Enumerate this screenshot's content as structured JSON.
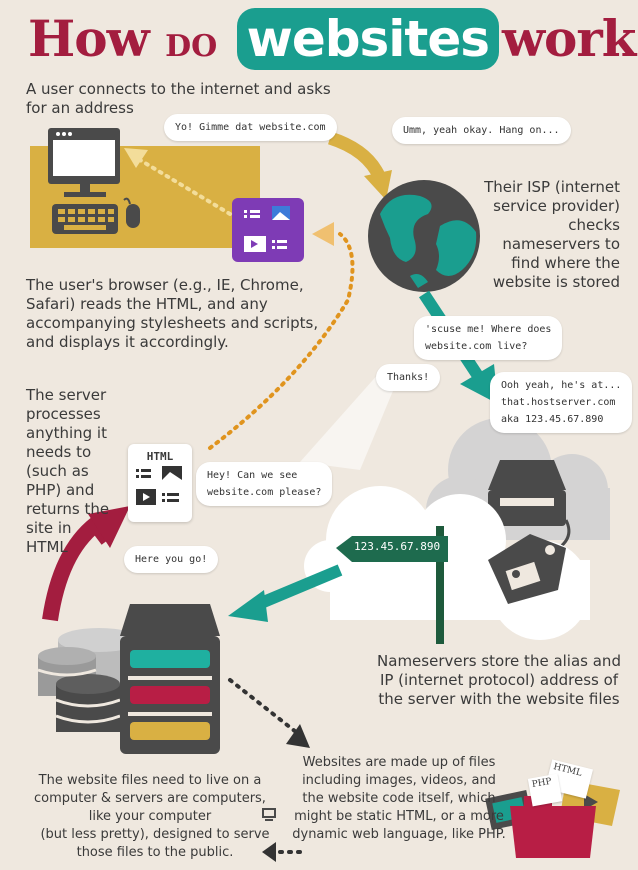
{
  "title": {
    "part1": "How",
    "part2": "DO",
    "highlight": "websites",
    "part3": "work?"
  },
  "texts": {
    "user_connects": "A user connects to the internet and asks for an address",
    "isp": "Their ISP (internet service provider) checks nameservers to find where the website is stored",
    "browser": "The user's browser (e.g., IE, Chrome, Safari) reads the HTML, and any accompanying stylesheets and scripts, and displays it accordingly.",
    "server_processes": "The server processes anything it needs to (such as PHP) and returns the site in HTML",
    "nameservers": "Nameservers store the alias and IP (internet protocol) address of the server with the website files",
    "files": "Websites are made up of files including images, videos, and the website code itself, which might be static HTML, or a more dynamic web language, like PHP.",
    "live_on_computer": "The website files need to live on a computer & servers are computers, like your computer",
    "live_on_computer_2": "(but less pretty), designed to serve those files to the public."
  },
  "bubbles": {
    "gimme": "Yo! Gimme dat website.com",
    "umm": "Umm, yeah okay. Hang on...",
    "scuse_1": "'scuse me! Where does",
    "scuse_2": "website.com live?",
    "thanks": "Thanks!",
    "ooh_1": "Ooh yeah, he's at...",
    "ooh_2": "that.hostserver.com",
    "ooh_3": "aka 123.45.67.890",
    "hey_1": "Hey! Can we see",
    "hey_2": "website.com please?",
    "here": "Here you go!"
  },
  "labels": {
    "html_card": "HTML",
    "ip_sign": "123.45.67.890",
    "html_file": "HTML",
    "php_file": "PHP"
  },
  "colors": {
    "crimson": "#a31d3f",
    "teal": "#1a9e8f",
    "gold": "#d9b043",
    "purple": "#7e3bb5",
    "dark": "#4a4a4a"
  }
}
